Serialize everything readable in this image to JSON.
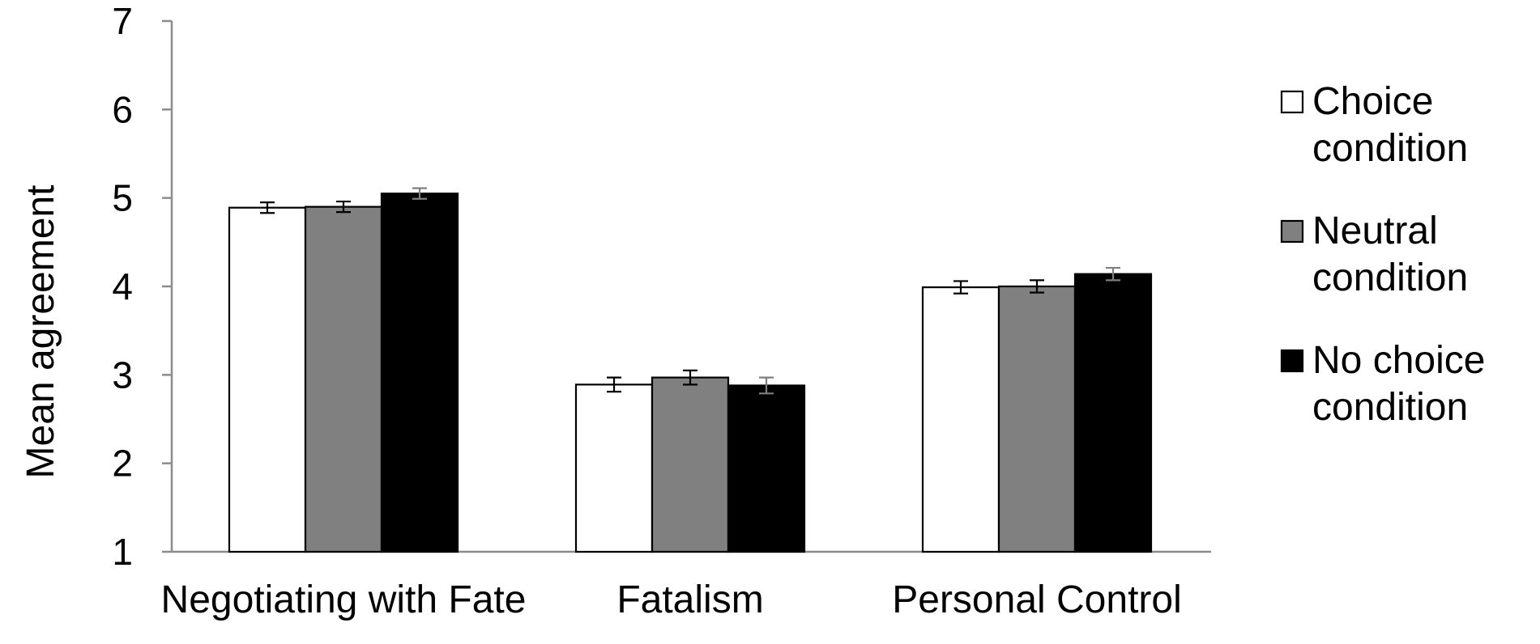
{
  "chart_data": {
    "type": "bar",
    "title": "",
    "xlabel": "",
    "ylabel": "Mean agreement",
    "ylim": [
      1,
      7
    ],
    "yticks": [
      "1",
      "2",
      "3",
      "4",
      "5",
      "6",
      "7"
    ],
    "grid": false,
    "legend_position": "right",
    "categories": [
      "Negotiating with Fate",
      "Fatalism",
      "Personal Control"
    ],
    "series": [
      {
        "name": "Choice condition",
        "legend_lines": [
          "Choice",
          "condition"
        ],
        "color": "#ffffff",
        "values": [
          4.89,
          2.89,
          3.99
        ],
        "errors": [
          0.06,
          0.08,
          0.07
        ]
      },
      {
        "name": "Neutral condition",
        "legend_lines": [
          "Neutral",
          "condition"
        ],
        "color": "#808080",
        "values": [
          4.9,
          2.97,
          4.0
        ],
        "errors": [
          0.06,
          0.08,
          0.07
        ]
      },
      {
        "name": "No choice condition",
        "legend_lines": [
          "No choice",
          "condition"
        ],
        "color": "#000000",
        "values": [
          5.05,
          2.88,
          4.14
        ],
        "errors": [
          0.06,
          0.09,
          0.07
        ]
      }
    ]
  }
}
